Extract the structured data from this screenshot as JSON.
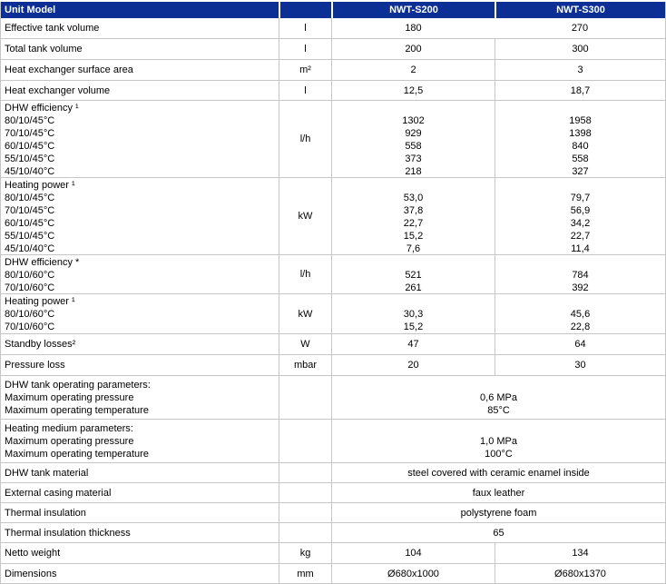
{
  "table": {
    "header": {
      "model_label": "Unit Model",
      "unit_label": "",
      "s200_label": "NWT-S200",
      "s300_label": "NWT-S300"
    },
    "rows": [
      {
        "label": "Effective tank volume",
        "unit": "l",
        "s200": "180",
        "s300": "270"
      },
      {
        "label": "Total tank volume",
        "unit": "l",
        "s200": "200",
        "s300": "300"
      },
      {
        "label": "Heat exchanger surface area",
        "unit": "m²",
        "s200": "2",
        "s300": "3"
      },
      {
        "label": "Heat exchanger volume",
        "unit": "l",
        "s200": "12,5",
        "s300": "18,7"
      },
      {
        "label": "DHW efficiency ¹\n80/10/45°C\n70/10/45°C\n60/10/45°C\n55/10/45°C\n45/10/40°C",
        "unit": "l/h",
        "s200": "\n1302\n929\n558\n373\n218",
        "s300": "\n1958\n1398\n840\n558\n327"
      },
      {
        "label": "Heating power ¹\n80/10/45°C\n70/10/45°C\n60/10/45°C\n55/10/45°C\n45/10/40°C",
        "unit": "kW",
        "s200": "\n53,0\n37,8\n22,7\n15,2\n7,6",
        "s300": "\n79,7\n56,9\n34,2\n22,7\n11,4"
      },
      {
        "label": "DHW efficiency *\n80/10/60°C\n70/10/60°C",
        "unit": "l/h",
        "s200": "\n521\n261",
        "s300": "\n784\n392"
      },
      {
        "label": "Heating power ¹\n80/10/60°C\n70/10/60°C",
        "unit": "kW",
        "s200": "\n30,3\n15,2",
        "s300": "\n45,6\n22,8"
      },
      {
        "label": "Standby losses²",
        "unit": "W",
        "s200": "47",
        "s300": "64"
      },
      {
        "label": "Pressure loss",
        "unit": "mbar",
        "s200": "20",
        "s300": "30"
      },
      {
        "label": "DHW tank operating parameters:\nMaximum operating pressure\nMaximum operating temperature",
        "unit": "",
        "merged": "\n0,6 MPa\n85°C"
      },
      {
        "label": "Heating medium parameters:\nMaximum operating pressure\nMaximum operating temperature",
        "unit": "",
        "merged": "\n1,0 MPa\n100°C"
      },
      {
        "label": "DHW tank material",
        "unit": "",
        "merged": "steel covered with ceramic enamel inside"
      },
      {
        "label": "External casing material",
        "unit": "",
        "merged": "faux leather"
      },
      {
        "label": "Thermal insulation",
        "unit": "",
        "merged": "polystyrene foam"
      },
      {
        "label": "Thermal insulation thickness",
        "unit": "",
        "merged": "65"
      },
      {
        "label": "Netto weight",
        "unit": "kg",
        "s200": "104",
        "s300": "134"
      },
      {
        "label": "Dimensions",
        "unit": "mm",
        "s200": "Ø680x1000",
        "s300": "Ø680x1370"
      }
    ]
  },
  "colors": {
    "header_bg": "#0b2f94",
    "header_text": "#ffffff",
    "border": "#c6c6c6",
    "body_text": "#000000"
  }
}
